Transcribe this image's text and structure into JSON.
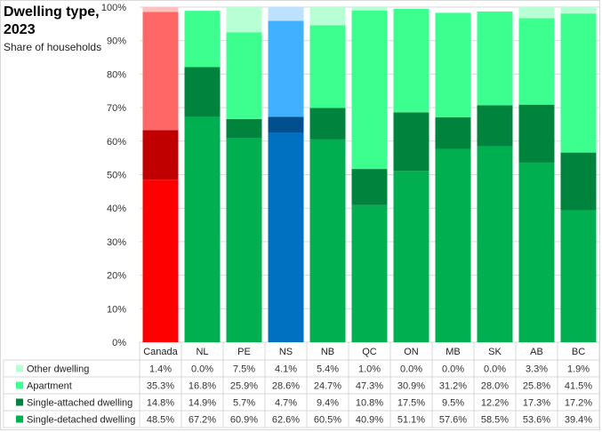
{
  "chart_data": {
    "type": "bar",
    "stacked": true,
    "title": "Dwelling type, 2023",
    "title_lines": [
      "Dwelling type,",
      "2023"
    ],
    "subtitle": "Share of households",
    "xlabel": "",
    "ylabel": "",
    "ylim": [
      0,
      100
    ],
    "yticks": [
      "0%",
      "10%",
      "20%",
      "30%",
      "40%",
      "50%",
      "60%",
      "70%",
      "80%",
      "90%",
      "100%"
    ],
    "grid": true,
    "legend": "data-table-below",
    "categories": [
      "Canada",
      "NL",
      "PE",
      "NS",
      "NB",
      "QC",
      "ON",
      "MB",
      "SK",
      "AB",
      "BC"
    ],
    "series": [
      {
        "name": "Single-detached dwelling",
        "values": [
          48.5,
          67.2,
          60.9,
          62.6,
          60.5,
          40.9,
          51.1,
          57.6,
          58.5,
          53.6,
          39.4
        ],
        "labels": [
          "48.5%",
          "67.2%",
          "60.9%",
          "62.6%",
          "60.5%",
          "40.9%",
          "51.1%",
          "57.6%",
          "58.5%",
          "53.6%",
          "39.4%"
        ]
      },
      {
        "name": "Single-attached dwelling",
        "values": [
          14.8,
          14.9,
          5.7,
          4.7,
          9.4,
          10.8,
          17.5,
          9.5,
          12.2,
          17.3,
          17.2
        ],
        "labels": [
          "14.8%",
          "14.9%",
          "5.7%",
          "4.7%",
          "9.4%",
          "10.8%",
          "17.5%",
          "9.5%",
          "12.2%",
          "17.3%",
          "17.2%"
        ]
      },
      {
        "name": "Apartment",
        "values": [
          35.3,
          16.8,
          25.9,
          28.6,
          24.7,
          47.3,
          30.9,
          31.2,
          28.0,
          25.8,
          41.5
        ],
        "labels": [
          "35.3%",
          "16.8%",
          "25.9%",
          "28.6%",
          "24.7%",
          "47.3%",
          "30.9%",
          "31.2%",
          "28.0%",
          "25.8%",
          "41.5%"
        ]
      },
      {
        "name": "Other dwelling",
        "values": [
          1.4,
          0.0,
          7.5,
          4.1,
          5.4,
          1.0,
          0.0,
          0.0,
          0.0,
          3.3,
          1.9
        ],
        "labels": [
          "1.4%",
          "0.0%",
          "7.5%",
          "4.1%",
          "5.4%",
          "1.0%",
          "0.0%",
          "0.0%",
          "0.0%",
          "3.3%",
          "1.9%"
        ]
      }
    ],
    "table_row_order": [
      "Other dwelling",
      "Apartment",
      "Single-attached dwelling",
      "Single-detached dwelling"
    ],
    "colors": {
      "default": [
        "#00b050",
        "#00843d",
        "#3dff8f",
        "#b8ffd6"
      ],
      "Canada": [
        "#ff0000",
        "#c00000",
        "#ff6666",
        "#ffc0c0"
      ],
      "NS": [
        "#0070c0",
        "#00508f",
        "#40b0ff",
        "#bde2ff"
      ]
    }
  }
}
